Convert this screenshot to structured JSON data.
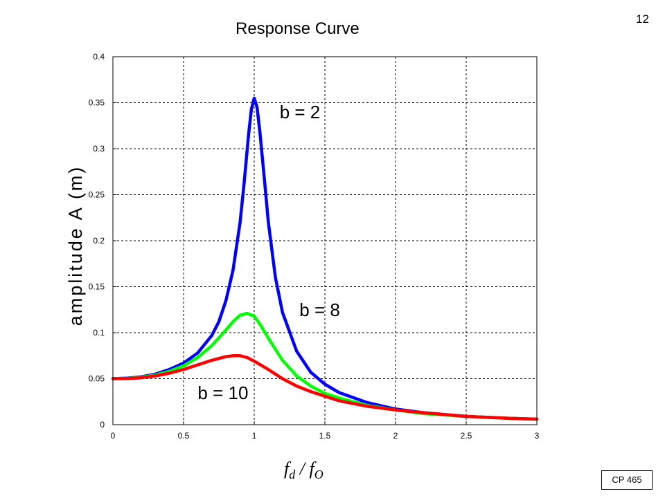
{
  "slide": {
    "title": "Response Curve",
    "page_number": "12",
    "reference": "CP 465"
  },
  "chart_data": {
    "type": "line",
    "title": "Response Curve",
    "xlabel": "f_d / f_O",
    "xlabel_parts": {
      "f1": "f",
      "sub1": "d",
      "slash": " / ",
      "f2": "f",
      "sub2": "O"
    },
    "ylabel": "amplitude  A  (m)",
    "xlim": [
      0,
      3
    ],
    "ylim": [
      0,
      0.4
    ],
    "xticks": [
      "0",
      "0.5",
      "1",
      "1.5",
      "2",
      "2.5",
      "3"
    ],
    "yticks": [
      "0",
      "0.05",
      "0.1",
      "0.15",
      "0.2",
      "0.25",
      "0.3",
      "0.35",
      "0.4"
    ],
    "xtick_values": [
      0,
      0.5,
      1,
      1.5,
      2,
      2.5,
      3
    ],
    "ytick_values": [
      0,
      0.05,
      0.1,
      0.15,
      0.2,
      0.25,
      0.3,
      0.35,
      0.4
    ],
    "grid": true,
    "grid_style": "dashed",
    "series": [
      {
        "name": "b = 2",
        "color": "#0000ff",
        "x": [
          0,
          0.1,
          0.2,
          0.3,
          0.4,
          0.5,
          0.6,
          0.7,
          0.75,
          0.8,
          0.85,
          0.9,
          0.93,
          0.96,
          0.98,
          1.0,
          1.02,
          1.04,
          1.07,
          1.1,
          1.15,
          1.2,
          1.3,
          1.4,
          1.5,
          1.6,
          1.8,
          2.0,
          2.2,
          2.5,
          2.8,
          3.0
        ],
        "values": [
          0.05,
          0.0505,
          0.052,
          0.055,
          0.06,
          0.067,
          0.078,
          0.097,
          0.112,
          0.135,
          0.168,
          0.22,
          0.265,
          0.315,
          0.343,
          0.355,
          0.345,
          0.318,
          0.27,
          0.22,
          0.16,
          0.122,
          0.08,
          0.057,
          0.044,
          0.035,
          0.024,
          0.017,
          0.013,
          0.009,
          0.007,
          0.006
        ]
      },
      {
        "name": "b = 8",
        "color": "#00ff00",
        "x": [
          0,
          0.1,
          0.2,
          0.3,
          0.4,
          0.5,
          0.6,
          0.7,
          0.8,
          0.85,
          0.9,
          0.95,
          1.0,
          1.05,
          1.1,
          1.2,
          1.3,
          1.4,
          1.5,
          1.6,
          1.8,
          2.0,
          2.2,
          2.5,
          2.8,
          3.0
        ],
        "values": [
          0.05,
          0.0503,
          0.0515,
          0.054,
          0.058,
          0.064,
          0.073,
          0.086,
          0.103,
          0.112,
          0.119,
          0.121,
          0.118,
          0.107,
          0.094,
          0.07,
          0.053,
          0.042,
          0.034,
          0.029,
          0.021,
          0.016,
          0.012,
          0.009,
          0.007,
          0.006
        ]
      },
      {
        "name": "b = 10",
        "color": "#ff0000",
        "x": [
          0,
          0.1,
          0.2,
          0.3,
          0.4,
          0.5,
          0.6,
          0.7,
          0.8,
          0.85,
          0.9,
          0.95,
          1.0,
          1.1,
          1.2,
          1.3,
          1.4,
          1.5,
          1.6,
          1.8,
          2.0,
          2.2,
          2.5,
          2.8,
          3.0
        ],
        "values": [
          0.05,
          0.0502,
          0.051,
          0.053,
          0.056,
          0.06,
          0.065,
          0.07,
          0.074,
          0.075,
          0.075,
          0.073,
          0.069,
          0.06,
          0.05,
          0.042,
          0.036,
          0.031,
          0.026,
          0.02,
          0.016,
          0.013,
          0.009,
          0.007,
          0.006
        ]
      }
    ],
    "annotations": [
      {
        "text": "b = 2",
        "x": 1.18,
        "y": 0.333
      },
      {
        "text": "b = 8",
        "x": 1.32,
        "y": 0.118
      },
      {
        "text": "b = 10",
        "x": 0.6,
        "y": 0.028
      }
    ]
  }
}
